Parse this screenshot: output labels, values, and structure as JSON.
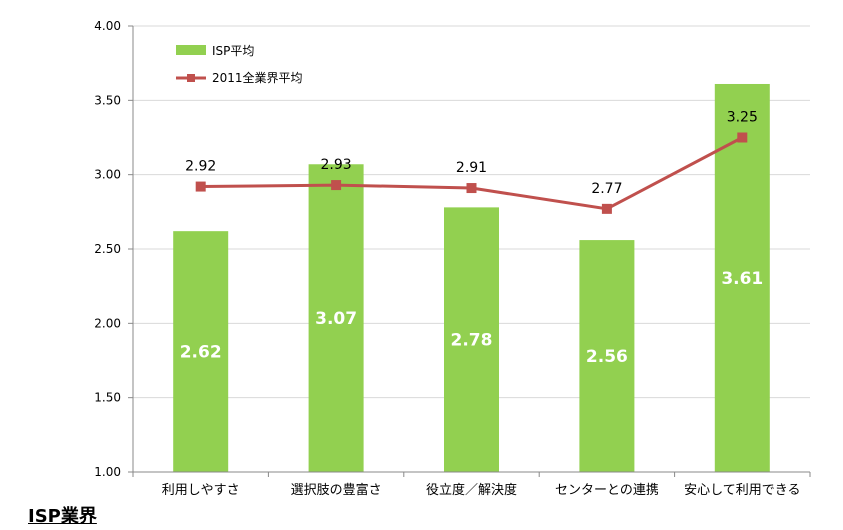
{
  "caption": "ISP業界",
  "chart_data": {
    "type": "bar",
    "categories": [
      "利用しやすさ",
      "選択肢の豊富さ",
      "役立度／解決度",
      "センターとの連携",
      "安心して利用できる"
    ],
    "series": [
      {
        "name": "ISP平均",
        "type": "bar",
        "color": "#92d050",
        "values": [
          2.62,
          3.07,
          2.78,
          2.56,
          3.61
        ]
      },
      {
        "name": "2011全業界平均",
        "type": "line",
        "color": "#c0504d",
        "values": [
          2.92,
          2.93,
          2.91,
          2.77,
          3.25
        ]
      }
    ],
    "ylim": [
      1.0,
      4.0
    ],
    "yticks": [
      "1.00",
      "1.50",
      "2.00",
      "2.50",
      "3.00",
      "3.50",
      "4.00"
    ],
    "grid": true,
    "legend": "top-left"
  }
}
